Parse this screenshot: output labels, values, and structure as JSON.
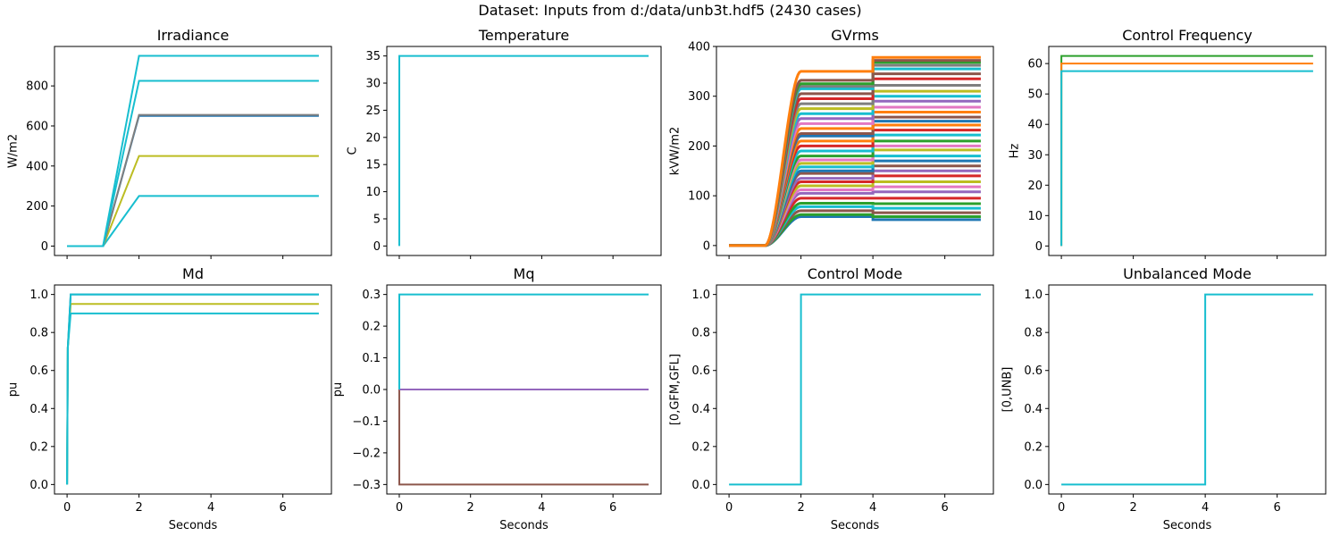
{
  "figure": {
    "suptitle": "Dataset: Inputs from d:/data/unb3t.hdf5 (2430 cases)"
  },
  "colors": [
    "#1f77b4",
    "#ff7f0e",
    "#2ca02c",
    "#d62728",
    "#9467bd",
    "#8c564b",
    "#e377c2",
    "#7f7f7f",
    "#bcbd22",
    "#17becf"
  ],
  "chart_data": [
    {
      "type": "line",
      "title": "Irradiance",
      "ylabel": "W/m2",
      "xlabel": "",
      "xlim": [
        -0.35,
        7.35
      ],
      "ylim": [
        -47,
        997
      ],
      "xticks": [
        0,
        2,
        4,
        6
      ],
      "show_xticklabels": false,
      "yticks": [
        0,
        200,
        400,
        600,
        800
      ],
      "ytick_labels": [
        "0",
        "200",
        "400",
        "600",
        "800"
      ],
      "series": [
        {
          "color": "#17becf",
          "x": [
            0,
            1,
            2,
            7
          ],
          "y": [
            0,
            0,
            250,
            250
          ]
        },
        {
          "color": "#bcbd22",
          "x": [
            0,
            1,
            2,
            7
          ],
          "y": [
            0,
            0,
            450,
            450
          ]
        },
        {
          "color": "#1f77b4",
          "x": [
            0,
            1,
            2,
            7
          ],
          "y": [
            0,
            0,
            650,
            650
          ]
        },
        {
          "color": "#7f7f7f",
          "x": [
            0,
            1,
            2,
            7
          ],
          "y": [
            0,
            0,
            655,
            655
          ]
        },
        {
          "color": "#17becf",
          "x": [
            0,
            1,
            2,
            7
          ],
          "y": [
            0,
            0,
            825,
            825
          ]
        },
        {
          "color": "#17becf",
          "x": [
            0,
            1,
            2,
            7
          ],
          "y": [
            0,
            0,
            950,
            950
          ]
        }
      ]
    },
    {
      "type": "line",
      "title": "Temperature",
      "ylabel": "C",
      "xlabel": "",
      "xlim": [
        -0.35,
        7.35
      ],
      "ylim": [
        -1.75,
        36.75
      ],
      "xticks": [
        0,
        2,
        4,
        6
      ],
      "show_xticklabels": false,
      "yticks": [
        0,
        5,
        10,
        15,
        20,
        25,
        30,
        35
      ],
      "ytick_labels": [
        "0",
        "5",
        "10",
        "15",
        "20",
        "25",
        "30",
        "35"
      ],
      "series": [
        {
          "color": "#17becf",
          "x": [
            0,
            0.001,
            7
          ],
          "y": [
            0,
            35,
            35
          ]
        }
      ]
    },
    {
      "type": "line",
      "title": "GVrms",
      "ylabel": "kVW/m2",
      "xlabel": "",
      "xlim": [
        -0.35,
        7.35
      ],
      "ylim": [
        -20,
        400
      ],
      "xticks": [
        0,
        2,
        4,
        6
      ],
      "show_xticklabels": false,
      "yticks": [
        0,
        100,
        200,
        300,
        400
      ],
      "ytick_labels": [
        "0",
        "100",
        "200",
        "300",
        "400"
      ],
      "curve": {
        "ramp_start": 1,
        "ramp_end": 2,
        "step_time": 4,
        "end_time": 7
      },
      "series": [
        {
          "color": "#1f77b4",
          "plateau": 58,
          "final": 52
        },
        {
          "color": "#2ca02c",
          "plateau": 62,
          "final": 58
        },
        {
          "color": "#8c564b",
          "plateau": 70,
          "final": 66
        },
        {
          "color": "#17becf",
          "plateau": 78,
          "final": 75
        },
        {
          "color": "#2ca02c",
          "plateau": 85,
          "final": 84
        },
        {
          "color": "#d62728",
          "plateau": 95,
          "final": 95
        },
        {
          "color": "#9467bd",
          "plateau": 105,
          "final": 108
        },
        {
          "color": "#e377c2",
          "plateau": 112,
          "final": 118
        },
        {
          "color": "#bcbd22",
          "plateau": 120,
          "final": 128
        },
        {
          "color": "#d62728",
          "plateau": 128,
          "final": 140
        },
        {
          "color": "#9467bd",
          "plateau": 135,
          "final": 150
        },
        {
          "color": "#8c564b",
          "plateau": 145,
          "final": 160
        },
        {
          "color": "#1f77b4",
          "plateau": 150,
          "final": 170
        },
        {
          "color": "#17becf",
          "plateau": 158,
          "final": 180
        },
        {
          "color": "#bcbd22",
          "plateau": 165,
          "final": 192
        },
        {
          "color": "#e377c2",
          "plateau": 172,
          "final": 200
        },
        {
          "color": "#2ca02c",
          "plateau": 180,
          "final": 210
        },
        {
          "color": "#17becf",
          "plateau": 190,
          "final": 222
        },
        {
          "color": "#d62728",
          "plateau": 200,
          "final": 232
        },
        {
          "color": "#ff7f0e",
          "plateau": 210,
          "final": 242
        },
        {
          "color": "#1f77b4",
          "plateau": 220,
          "final": 250
        },
        {
          "color": "#8c564b",
          "plateau": 225,
          "final": 258
        },
        {
          "color": "#ff7f0e",
          "plateau": 235,
          "final": 268
        },
        {
          "color": "#e377c2",
          "plateau": 245,
          "final": 278
        },
        {
          "color": "#9467bd",
          "plateau": 255,
          "final": 290
        },
        {
          "color": "#17becf",
          "plateau": 265,
          "final": 300
        },
        {
          "color": "#bcbd22",
          "plateau": 275,
          "final": 310
        },
        {
          "color": "#7f7f7f",
          "plateau": 285,
          "final": 322
        },
        {
          "color": "#d62728",
          "plateau": 295,
          "final": 335
        },
        {
          "color": "#8c564b",
          "plateau": 305,
          "final": 345
        },
        {
          "color": "#17becf",
          "plateau": 315,
          "final": 355
        },
        {
          "color": "#7f7f7f",
          "plateau": 320,
          "final": 362
        },
        {
          "color": "#2ca02c",
          "plateau": 325,
          "final": 368
        },
        {
          "color": "#8c564b",
          "plateau": 332,
          "final": 372
        },
        {
          "color": "#ff7f0e",
          "plateau": 350,
          "final": 378
        }
      ]
    },
    {
      "type": "line",
      "title": "Control Frequency",
      "ylabel": "Hz",
      "xlabel": "",
      "xlim": [
        -0.35,
        7.35
      ],
      "ylim": [
        -3.125,
        65.625
      ],
      "xticks": [
        0,
        2,
        4,
        6
      ],
      "show_xticklabels": false,
      "yticks": [
        0,
        10,
        20,
        30,
        40,
        50,
        60
      ],
      "ytick_labels": [
        "0",
        "10",
        "20",
        "30",
        "40",
        "50",
        "60"
      ],
      "series": [
        {
          "color": "#2ca02c",
          "x": [
            0,
            0.001,
            7
          ],
          "y": [
            0,
            62.5,
            62.5
          ]
        },
        {
          "color": "#ff7f0e",
          "x": [
            0,
            0.001,
            7
          ],
          "y": [
            0,
            60,
            60
          ]
        },
        {
          "color": "#17becf",
          "x": [
            0,
            0.001,
            7
          ],
          "y": [
            0,
            57.5,
            57.5
          ]
        }
      ]
    },
    {
      "type": "line",
      "title": "Md",
      "ylabel": "pu",
      "xlabel": "Seconds",
      "xlim": [
        -0.35,
        7.35
      ],
      "ylim": [
        -0.05,
        1.05
      ],
      "xticks": [
        0,
        2,
        4,
        6
      ],
      "show_xticklabels": true,
      "xtick_labels": [
        "0",
        "2",
        "4",
        "6"
      ],
      "yticks": [
        0,
        0.2,
        0.4,
        0.6,
        0.8,
        1.0
      ],
      "ytick_labels": [
        "0.0",
        "0.2",
        "0.4",
        "0.6",
        "0.8",
        "1.0"
      ],
      "series": [
        {
          "color": "#1f77b4",
          "x": [
            0,
            0.02,
            0.1,
            7
          ],
          "y": [
            0,
            0.72,
            1.0,
            1.0
          ]
        },
        {
          "color": "#bcbd22",
          "x": [
            0,
            0.02,
            0.1,
            7
          ],
          "y": [
            0,
            0.72,
            0.95,
            0.95
          ]
        },
        {
          "color": "#17becf",
          "x": [
            0,
            0.02,
            0.1,
            7
          ],
          "y": [
            0,
            0.72,
            0.9,
            0.9
          ]
        },
        {
          "color": "#17becf",
          "x": [
            0,
            0.02,
            0.1,
            7
          ],
          "y": [
            0,
            0.72,
            1.0,
            1.0
          ]
        }
      ]
    },
    {
      "type": "line",
      "title": "Mq",
      "ylabel": "pu",
      "xlabel": "Seconds",
      "xlim": [
        -0.35,
        7.35
      ],
      "ylim": [
        -0.33,
        0.33
      ],
      "xticks": [
        0,
        2,
        4,
        6
      ],
      "show_xticklabels": true,
      "xtick_labels": [
        "0",
        "2",
        "4",
        "6"
      ],
      "yticks": [
        -0.3,
        -0.2,
        -0.1,
        0.0,
        0.1,
        0.2,
        0.3
      ],
      "ytick_labels": [
        "−0.3",
        "−0.2",
        "−0.1",
        "0.0",
        "0.1",
        "0.2",
        "0.3"
      ],
      "series": [
        {
          "color": "#8c564b",
          "x": [
            0,
            0.001,
            7
          ],
          "y": [
            0,
            -0.3,
            -0.3
          ]
        },
        {
          "color": "#9467bd",
          "x": [
            0,
            7
          ],
          "y": [
            0,
            0
          ]
        },
        {
          "color": "#17becf",
          "x": [
            0,
            0.001,
            7
          ],
          "y": [
            0,
            0.3,
            0.3
          ]
        }
      ]
    },
    {
      "type": "line",
      "title": "Control Mode",
      "ylabel": "[0,GFM,GFL]",
      "xlabel": "Seconds",
      "xlim": [
        -0.35,
        7.35
      ],
      "ylim": [
        -0.05,
        1.05
      ],
      "xticks": [
        0,
        2,
        4,
        6
      ],
      "show_xticklabels": true,
      "xtick_labels": [
        "0",
        "2",
        "4",
        "6"
      ],
      "yticks": [
        0,
        0.2,
        0.4,
        0.6,
        0.8,
        1.0
      ],
      "ytick_labels": [
        "0.0",
        "0.2",
        "0.4",
        "0.6",
        "0.8",
        "1.0"
      ],
      "series": [
        {
          "color": "#17becf",
          "x": [
            0,
            2,
            2,
            7
          ],
          "y": [
            0,
            0,
            1,
            1
          ]
        }
      ]
    },
    {
      "type": "line",
      "title": "Unbalanced Mode",
      "ylabel": "[0,UNB]",
      "xlabel": "Seconds",
      "xlim": [
        -0.35,
        7.35
      ],
      "ylim": [
        -0.05,
        1.05
      ],
      "xticks": [
        0,
        2,
        4,
        6
      ],
      "show_xticklabels": true,
      "xtick_labels": [
        "0",
        "2",
        "4",
        "6"
      ],
      "yticks": [
        0,
        0.2,
        0.4,
        0.6,
        0.8,
        1.0
      ],
      "ytick_labels": [
        "0.0",
        "0.2",
        "0.4",
        "0.6",
        "0.8",
        "1.0"
      ],
      "series": [
        {
          "color": "#17becf",
          "x": [
            0,
            4,
            4,
            7
          ],
          "y": [
            0,
            0,
            1,
            1
          ]
        }
      ]
    }
  ]
}
